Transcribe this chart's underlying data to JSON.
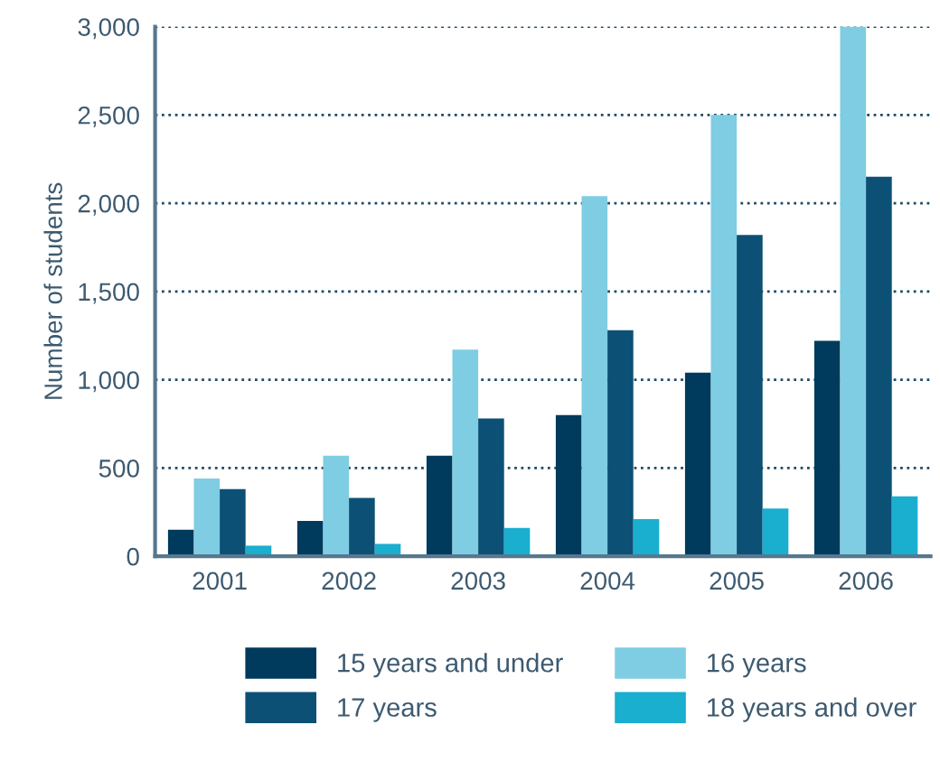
{
  "chart_data": {
    "type": "bar",
    "ylabel": "Number of students",
    "categories": [
      "2001",
      "2002",
      "2003",
      "2004",
      "2005",
      "2006"
    ],
    "series": [
      {
        "name": "15 years and under",
        "color": "#003a5c",
        "values": [
          150,
          200,
          570,
          800,
          1040,
          1220
        ]
      },
      {
        "name": "16 years",
        "color": "#7ecde3",
        "values": [
          440,
          570,
          1170,
          2040,
          2500,
          3000
        ]
      },
      {
        "name": "17 years",
        "color": "#0c5076",
        "values": [
          380,
          330,
          780,
          1280,
          1820,
          2150
        ]
      },
      {
        "name": "18 years and over",
        "color": "#1aaecf",
        "values": [
          60,
          70,
          160,
          210,
          270,
          340
        ]
      }
    ],
    "ylim": [
      0,
      3000
    ],
    "yticks": [
      0,
      500,
      {
        "value": 1000,
        "label": "1,000"
      },
      {
        "value": 1500,
        "label": "1,500"
      },
      {
        "value": 2000,
        "label": "2,000"
      },
      {
        "value": 2500,
        "label": "2,500"
      },
      {
        "value": 3000,
        "label": "3,000"
      }
    ],
    "grid": "y",
    "legend": "bottom",
    "line_style": "dotted"
  }
}
